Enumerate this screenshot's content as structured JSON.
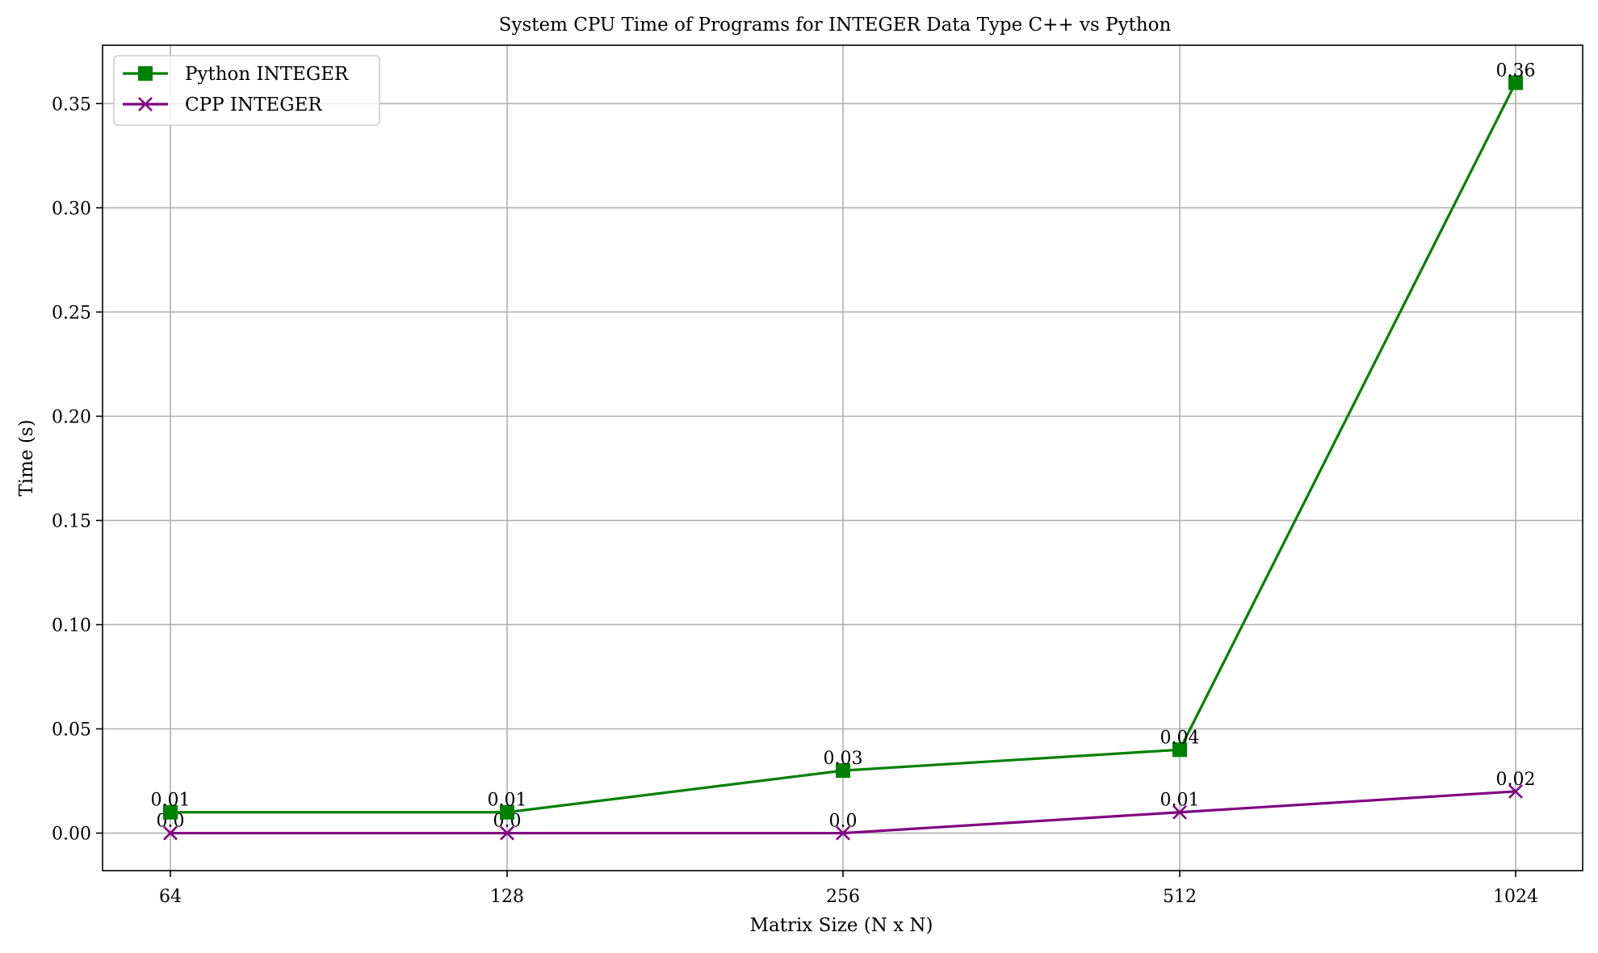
{
  "chart_data": {
    "type": "line",
    "title": "System CPU Time of Programs for INTEGER Data Type C++ vs Python",
    "xlabel": "Matrix Size (N x N)",
    "ylabel": "Time (s)",
    "categories": [
      "64",
      "128",
      "256",
      "512",
      "1024"
    ],
    "ylim": [
      -0.018,
      0.378
    ],
    "yticks": [
      "0.00",
      "0.05",
      "0.10",
      "0.15",
      "0.20",
      "0.25",
      "0.30",
      "0.35"
    ],
    "grid": true,
    "legend_position": "upper-left",
    "series": [
      {
        "name": "Python INTEGER",
        "values": [
          0.01,
          0.01,
          0.03,
          0.04,
          0.36
        ],
        "labels": [
          "0.01",
          "0.01",
          "0.03",
          "0.04",
          "0.36"
        ],
        "color": "#008000",
        "marker": "square"
      },
      {
        "name": "CPP INTEGER",
        "values": [
          0.0,
          0.0,
          0.0,
          0.01,
          0.02
        ],
        "labels": [
          "0.0",
          "0.0",
          "0.0",
          "0.01",
          "0.02"
        ],
        "color": "#800080",
        "marker": "x"
      }
    ]
  }
}
